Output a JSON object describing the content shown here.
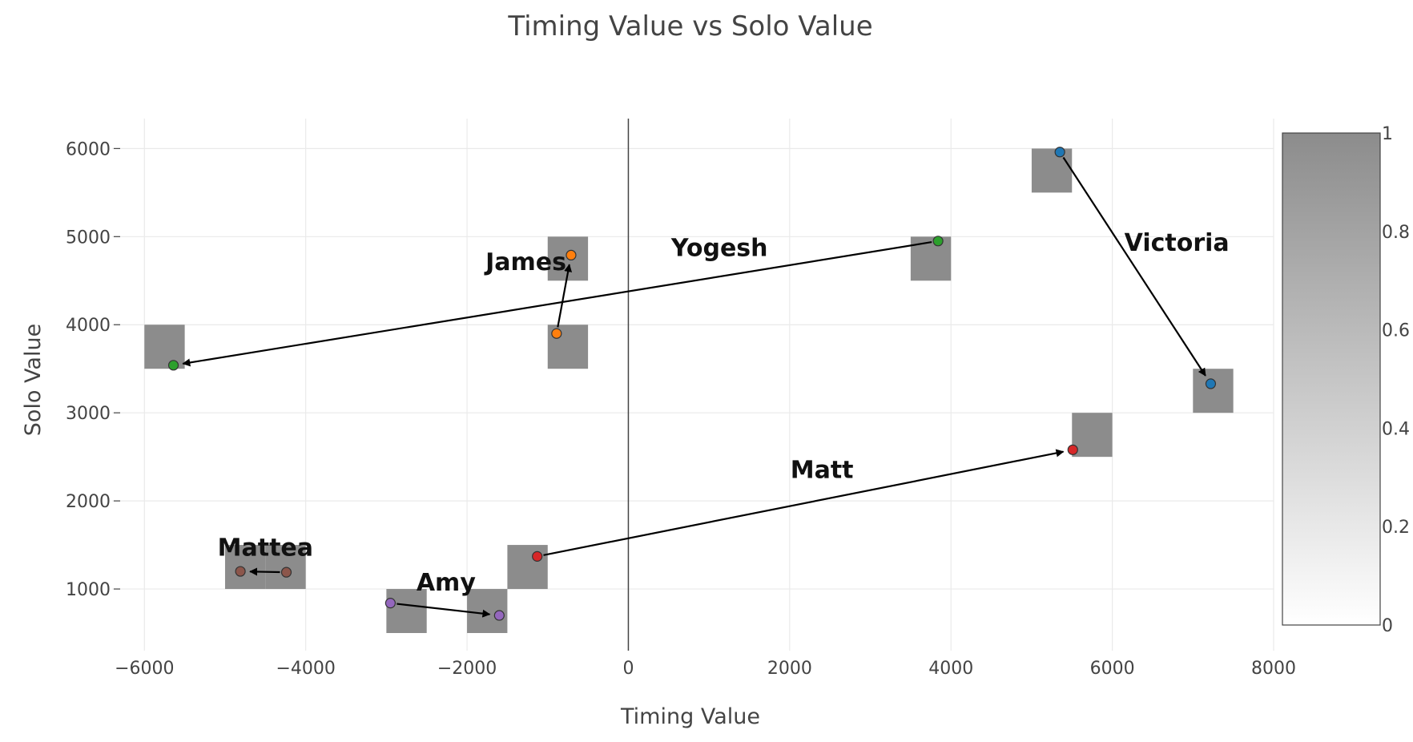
{
  "chart_data": {
    "type": "scatter",
    "title": "Timing Value vs Solo Value",
    "xlabel": "Timing Value",
    "ylabel": "Solo Value",
    "xlim": [
      -6400,
      8000
    ],
    "ylim": [
      300,
      6340
    ],
    "grid": true,
    "x_ticks": [
      -6000,
      -4000,
      -2000,
      0,
      2000,
      4000,
      6000,
      8000
    ],
    "x_tick_labels": [
      "−6000",
      "−4000",
      "−2000",
      "0",
      "2000",
      "4000",
      "6000",
      "8000"
    ],
    "y_ticks": [
      1000,
      2000,
      3000,
      4000,
      5000,
      6000
    ],
    "y_tick_labels": [
      "1000",
      "2000",
      "3000",
      "4000",
      "5000",
      "6000"
    ],
    "zero_line_x": 0,
    "heatmap_cell_size": [
      500,
      500
    ],
    "heatmap_cells": [
      [
        5000,
        5500
      ],
      [
        3500,
        4500
      ],
      [
        -1000,
        4500
      ],
      [
        -1000,
        3500
      ],
      [
        -6000,
        3500
      ],
      [
        7000,
        3000
      ],
      [
        5500,
        2500
      ],
      [
        -1500,
        1000
      ],
      [
        -5000,
        1000
      ],
      [
        -4500,
        1000
      ],
      [
        -3000,
        500
      ],
      [
        -2000,
        500
      ]
    ],
    "colorbar": {
      "range": [
        0,
        1
      ],
      "tick_values": [
        0,
        0.2,
        0.4,
        0.6,
        0.8,
        1
      ],
      "tick_labels": [
        "0",
        "0.2",
        "0.4",
        "0.6",
        "0.8",
        "1"
      ],
      "color_low": "#ffffff",
      "color_high": "#8c8c8c"
    },
    "series": [
      {
        "name": "Victoria",
        "color": "#1f77b4",
        "start": [
          5350,
          5960
        ],
        "end": [
          7220,
          3330
        ]
      },
      {
        "name": "Yogesh",
        "color": "#2ca02c",
        "start": [
          3840,
          4950
        ],
        "end": [
          -5640,
          3540
        ]
      },
      {
        "name": "James",
        "color": "#ff7f0e",
        "start": [
          -890,
          3900
        ],
        "end": [
          -710,
          4790
        ]
      },
      {
        "name": "Matt",
        "color": "#d62728",
        "start": [
          -1130,
          1370
        ],
        "end": [
          5510,
          2580
        ]
      },
      {
        "name": "Mattea",
        "color": "#8c564b",
        "start": [
          -4240,
          1190
        ],
        "end": [
          -4810,
          1200
        ]
      },
      {
        "name": "Amy",
        "color": "#9467bd",
        "start": [
          -2950,
          840
        ],
        "end": [
          -1600,
          700
        ]
      }
    ],
    "annotations": [
      {
        "text": "Victoria",
        "x": 6800,
        "y": 4840
      },
      {
        "text": "Yogesh",
        "x": 1130,
        "y": 4780
      },
      {
        "text": "James",
        "x": -1270,
        "y": 4620
      },
      {
        "text": "Matt",
        "x": 2400,
        "y": 2260
      },
      {
        "text": "Mattea",
        "x": -4500,
        "y": 1380
      },
      {
        "text": "Amy",
        "x": -2260,
        "y": 980
      }
    ]
  }
}
